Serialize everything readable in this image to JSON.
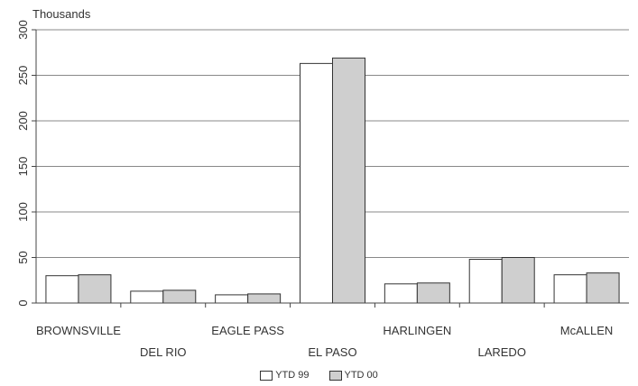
{
  "chart_data": {
    "type": "bar",
    "unit_label": "Thousands",
    "categories": [
      "BROWNSVILLE",
      "DEL RIO",
      "EAGLE PASS",
      "EL PASO",
      "HARLINGEN",
      "LAREDO",
      "McALLEN"
    ],
    "series": [
      {
        "name": "YTD 99",
        "values": [
          30,
          13,
          9,
          263,
          21,
          48,
          31
        ],
        "color": "#ffffff"
      },
      {
        "name": "YTD 00",
        "values": [
          31,
          14,
          10,
          269,
          22,
          50,
          33
        ],
        "color": "#cfcfcf"
      }
    ],
    "ylim": [
      0,
      300
    ],
    "yticks": [
      "0",
      "50",
      "100",
      "150",
      "200",
      "250",
      "300"
    ],
    "grid": true,
    "legend_position": "bottom"
  }
}
